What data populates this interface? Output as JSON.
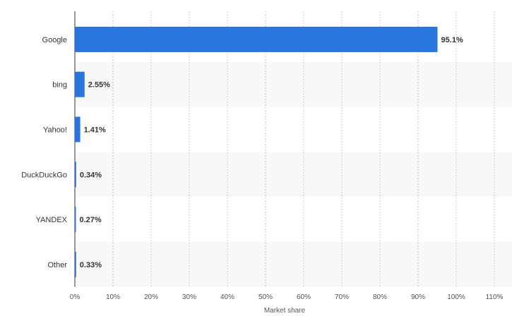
{
  "chart_data": {
    "type": "bar",
    "orientation": "horizontal",
    "categories": [
      "Google",
      "bing",
      "Yahoo!",
      "DuckDuckGo",
      "YANDEX",
      "Other"
    ],
    "values": [
      95.1,
      2.55,
      1.41,
      0.34,
      0.27,
      0.33
    ],
    "data_labels": [
      "95.1%",
      "2.55%",
      "1.41%",
      "0.34%",
      "0.27%",
      "0.33%"
    ],
    "xlabel": "Market share",
    "ylabel": "",
    "xlim": [
      0,
      110
    ],
    "x_ticks": [
      0,
      10,
      20,
      30,
      40,
      50,
      60,
      70,
      80,
      90,
      100,
      110
    ],
    "x_tick_labels": [
      "0%",
      "10%",
      "20%",
      "30%",
      "40%",
      "50%",
      "60%",
      "70%",
      "80%",
      "90%",
      "100%",
      "110%"
    ],
    "grid": "vertical-dotted",
    "legend": "none",
    "bar_color": "#2876dd",
    "band_color": "#f8f8f8"
  }
}
